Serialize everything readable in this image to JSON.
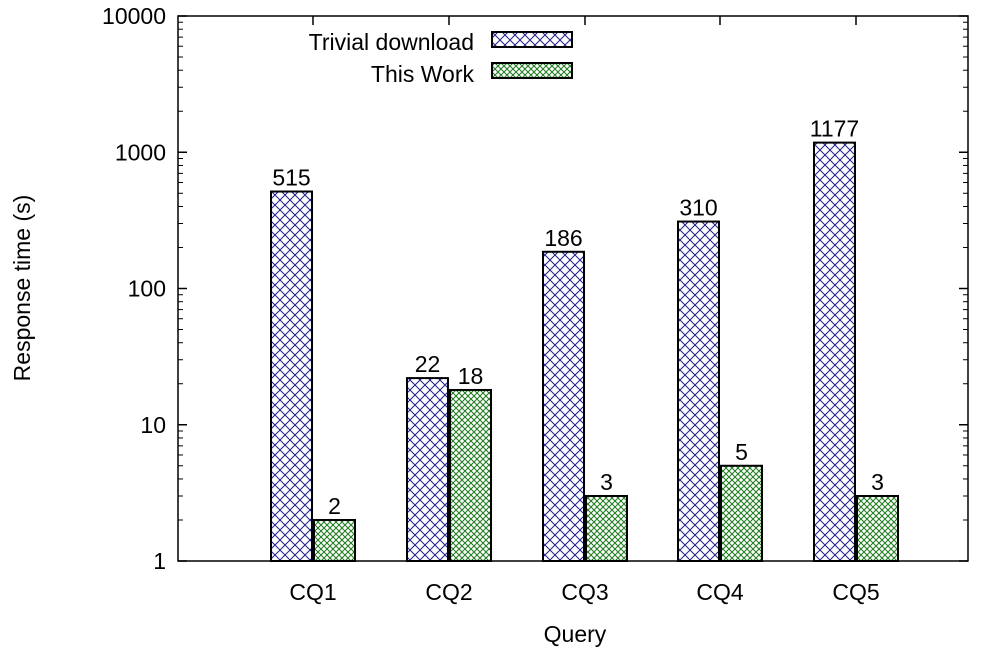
{
  "chart_data": {
    "type": "bar",
    "scale": "log",
    "title": "",
    "xlabel": "Query",
    "ylabel": "Response time (s)",
    "ylim": [
      1,
      10000
    ],
    "yticks": [
      "1",
      "10",
      "100",
      "1000",
      "10000"
    ],
    "categories": [
      "CQ1",
      "CQ2",
      "CQ3",
      "CQ4",
      "CQ5"
    ],
    "series": [
      {
        "name": "Trivial download",
        "values": [
          515,
          22,
          186,
          310,
          1177
        ],
        "labels": [
          "515",
          "22",
          "186",
          "310",
          "1177"
        ],
        "color": "#1f1f8f",
        "pattern": "crosshatch"
      },
      {
        "name": "This Work",
        "values": [
          2,
          18,
          3,
          5,
          3
        ],
        "labels": [
          "2",
          "18",
          "3",
          "5",
          "3"
        ],
        "color": "#1a7a1a",
        "pattern": "fine-crosshatch"
      }
    ],
    "legend": "top-left",
    "grid": false
  }
}
